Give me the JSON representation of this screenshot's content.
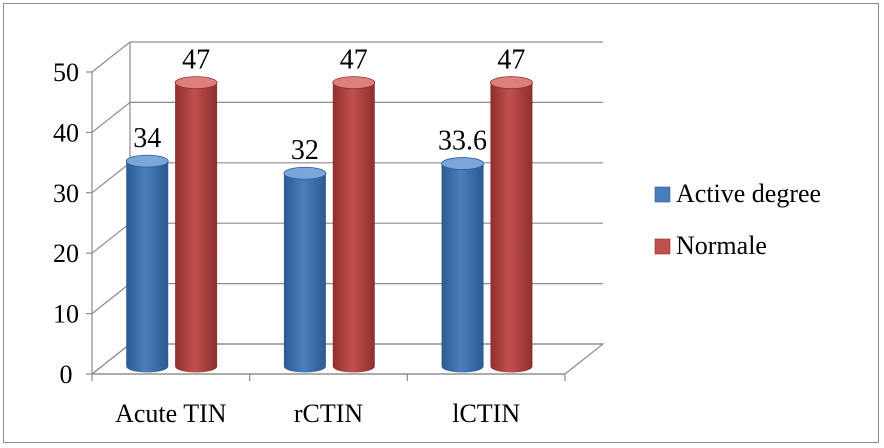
{
  "chart_data": {
    "type": "bar",
    "title": "",
    "xlabel": "",
    "ylabel": "",
    "categories": [
      "Acute TIN",
      "rCTIN",
      "lCTIN"
    ],
    "series": [
      {
        "name": "Active degree",
        "values": [
          34,
          32,
          33.6
        ],
        "labels": [
          "34",
          "32",
          "33.6"
        ],
        "color": "#4a7ebb",
        "dark": "#2c5a91",
        "light": "#7aa6dc"
      },
      {
        "name": "Normale",
        "values": [
          47,
          47,
          47
        ],
        "labels": [
          "47",
          "47",
          "47"
        ],
        "color": "#c0504d",
        "dark": "#8f2f2c",
        "light": "#df7f7c"
      }
    ],
    "ylim": [
      0,
      50
    ],
    "yticks": [
      "0",
      "10",
      "20",
      "30",
      "40",
      "50"
    ],
    "grid": true,
    "legend_position": "right",
    "style": "3d-cylinder"
  }
}
